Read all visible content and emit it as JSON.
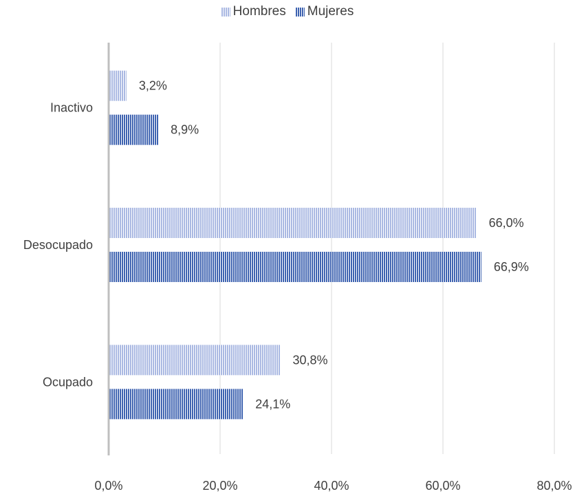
{
  "chart_data": {
    "type": "bar",
    "orientation": "horizontal",
    "categories": [
      "Inactivo",
      "Desocupado",
      "Ocupado"
    ],
    "series": [
      {
        "name": "Hombres",
        "values": [
          3.2,
          66.0,
          30.8
        ],
        "labels": [
          "3,2%",
          "66,0%",
          "30,8%"
        ],
        "color": "#a9b8e2"
      },
      {
        "name": "Mujeres",
        "values": [
          8.9,
          66.9,
          24.1
        ],
        "labels": [
          "8,9%",
          "66,9%",
          "24,1%"
        ],
        "color": "#3d62b0"
      }
    ],
    "xlim": [
      0,
      80
    ],
    "xticks": [
      0,
      20,
      40,
      60,
      80
    ],
    "xtick_labels": [
      "0,0%",
      "20,0%",
      "40,0%",
      "60,0%",
      "80,0%"
    ],
    "legend_position": "top",
    "grid": true,
    "bar_pattern": "vertical-stripes"
  }
}
